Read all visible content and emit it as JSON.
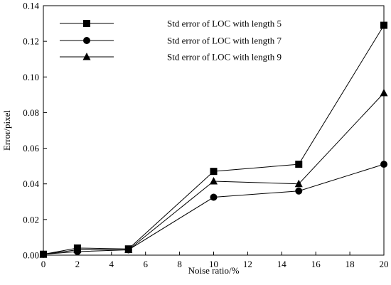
{
  "chart_data": {
    "type": "line",
    "title": "",
    "xlabel": "Noise ratio/%",
    "ylabel": "Error/pixel",
    "xlim": [
      0,
      20
    ],
    "ylim": [
      0,
      0.14
    ],
    "x_ticks": [
      0,
      2,
      4,
      6,
      8,
      10,
      12,
      14,
      16,
      18,
      20
    ],
    "y_ticks": [
      "0.00",
      "0.02",
      "0.04",
      "0.06",
      "0.08",
      "0.10",
      "0.12",
      "0.14"
    ],
    "grid": false,
    "legend_position": "top-left",
    "x": [
      0,
      2,
      5,
      10,
      15,
      20
    ],
    "series": [
      {
        "name": "Std error of LOC with length 5",
        "marker": "square",
        "values": [
          0.0005,
          0.004,
          0.0035,
          0.047,
          0.051,
          0.129
        ]
      },
      {
        "name": "Std error of LOC with length 7",
        "marker": "circle",
        "values": [
          0.0005,
          0.002,
          0.003,
          0.0325,
          0.036,
          0.051
        ]
      },
      {
        "name": "Std error of LOC with length 9",
        "marker": "triangle",
        "values": [
          0.0005,
          0.003,
          0.003,
          0.0415,
          0.04,
          0.091
        ]
      }
    ]
  }
}
